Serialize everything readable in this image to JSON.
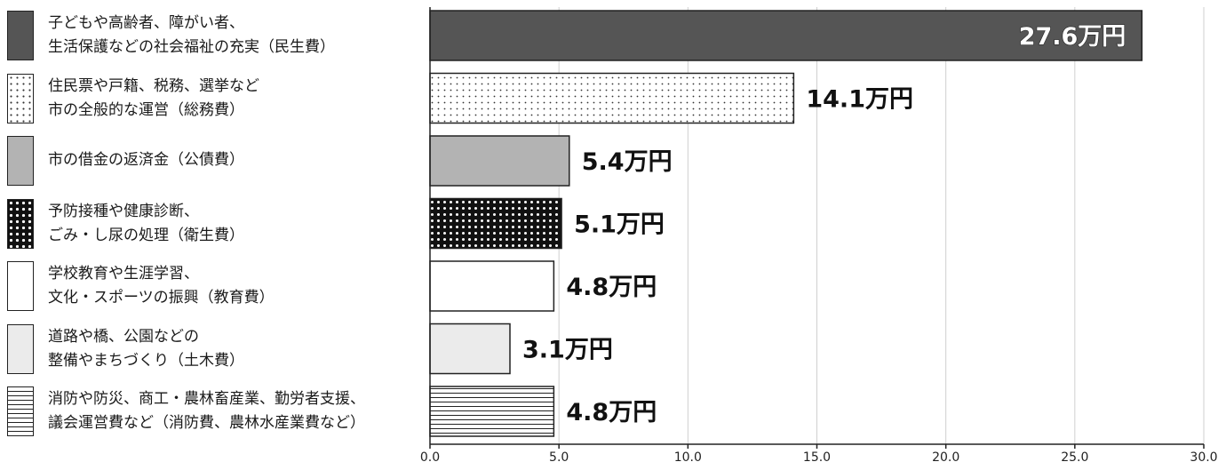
{
  "chart_data": {
    "type": "bar",
    "orientation": "horizontal",
    "unit_suffix": "万円",
    "xlim": [
      0,
      30
    ],
    "ticks": [
      "0.0",
      "5.0",
      "10.0",
      "15.0",
      "20.0",
      "25.0",
      "30.0"
    ],
    "grid": true,
    "categories": [
      {
        "line1": "子どもや高齢者、障がい者、",
        "line2": "生活保護などの社会福祉の充実（民生費）",
        "value": 27.6,
        "label": "27.6万円",
        "fill": "#555555",
        "pattern": "solid-dark"
      },
      {
        "line1": "住民票や戸籍、税務、選挙など",
        "line2": "市の全般的な運営（総務費）",
        "value": 14.1,
        "label": "14.1万円",
        "fill": "#ffffff",
        "pattern": "fine-dots"
      },
      {
        "line1": "市の借金の返済金（公債費）",
        "line2": "",
        "value": 5.4,
        "label": "5.4万円",
        "fill": "#b3b3b3",
        "pattern": "solid-gray"
      },
      {
        "line1": "予防接種や健康診断、",
        "line2": "ごみ・し尿の処理（衛生費）",
        "value": 5.1,
        "label": "5.1万円",
        "fill": "#111111",
        "pattern": "dark-dots"
      },
      {
        "line1": "学校教育や生涯学習、",
        "line2": "文化・スポーツの振興（教育費）",
        "value": 4.8,
        "label": "4.8万円",
        "fill": "#ffffff",
        "pattern": "plain-white"
      },
      {
        "line1": "道路や橋、公園などの",
        "line2": "整備やまちづくり（土木費）",
        "value": 3.1,
        "label": "3.1万円",
        "fill": "#ebebeb",
        "pattern": "solid-light"
      },
      {
        "line1": "消防や防災、商工・農林畜産業、勤労者支援、",
        "line2": "議会運営費など（消防費、農林水産業費など）",
        "value": 4.8,
        "label": "4.8万円",
        "fill": "#ffffff",
        "pattern": "horizontal-lines"
      }
    ]
  }
}
